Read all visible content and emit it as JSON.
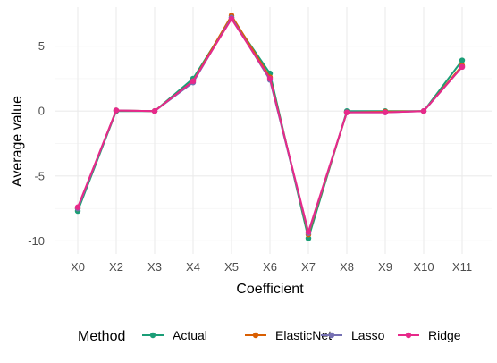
{
  "chart_data": {
    "type": "line",
    "title": "",
    "xlabel": "Coefficient",
    "ylabel": "Average value",
    "categories": [
      "X0",
      "X2",
      "X3",
      "X4",
      "X5",
      "X6",
      "X7",
      "X8",
      "X9",
      "X10",
      "X11"
    ],
    "ylim": [
      -11,
      8
    ],
    "y_ticks": [
      -10,
      -5,
      0,
      5
    ],
    "grid": true,
    "legend": {
      "title": "Method",
      "position": "bottom"
    },
    "series": [
      {
        "name": "Actual",
        "color": "#1b9e77",
        "values": [
          -7.7,
          0.0,
          0.0,
          2.5,
          7.2,
          2.9,
          -9.8,
          0.0,
          0.0,
          0.0,
          3.9
        ]
      },
      {
        "name": "ElasticNet",
        "color": "#d95f02",
        "values": [
          -7.5,
          0.05,
          0.0,
          2.3,
          7.35,
          2.6,
          -9.5,
          -0.1,
          -0.05,
          0.0,
          3.5
        ]
      },
      {
        "name": "Lasso",
        "color": "#7570b3",
        "values": [
          -7.5,
          0.05,
          0.0,
          2.2,
          7.2,
          2.4,
          -9.4,
          -0.1,
          -0.1,
          0.0,
          3.4
        ]
      },
      {
        "name": "Ridge",
        "color": "#e7298a",
        "values": [
          -7.4,
          0.05,
          0.0,
          2.3,
          7.1,
          2.5,
          -9.3,
          -0.1,
          -0.1,
          0.0,
          3.4
        ]
      }
    ]
  }
}
